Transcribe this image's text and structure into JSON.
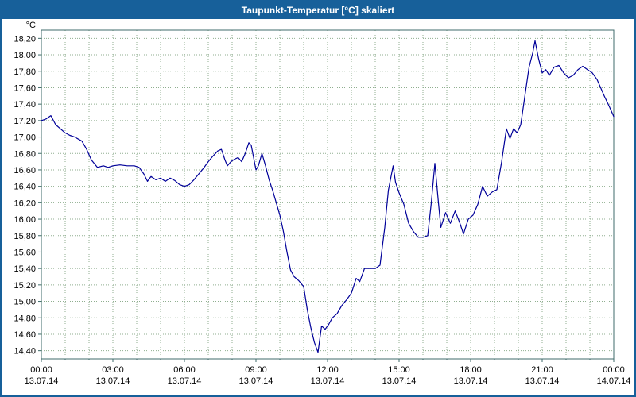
{
  "title": "Taupunkt-Temperatur [°C] skaliert",
  "colors": {
    "titlebar_bg": "#17609A",
    "titlebar_text": "#FFFFFF",
    "border": "#17609A",
    "background": "#FFFFFF",
    "grid": "#8FAE8F",
    "plot_border": "#3F6B6B",
    "label_text": "#000000",
    "line": "#000099"
  },
  "chart_data": {
    "type": "line",
    "title": "Taupunkt-Temperatur [°C] skaliert",
    "y_unit": "°C",
    "ylabel": "",
    "xlabel": "",
    "grid": true,
    "legend_position": "none",
    "ylim": [
      14.3,
      18.3
    ],
    "ytick_start": 14.4,
    "ytick_step": 0.2,
    "ytick_end": 18.2,
    "y_decimal_separator": ",",
    "xlim": [
      0,
      24
    ],
    "x_minor_grid_hours": 1,
    "x_ticks": [
      {
        "hour": 0,
        "time": "00:00",
        "date": "13.07.14"
      },
      {
        "hour": 3,
        "time": "03:00",
        "date": "13.07.14"
      },
      {
        "hour": 6,
        "time": "06:00",
        "date": "13.07.14"
      },
      {
        "hour": 9,
        "time": "09:00",
        "date": "13.07.14"
      },
      {
        "hour": 12,
        "time": "12:00",
        "date": "13.07.14"
      },
      {
        "hour": 15,
        "time": "15:00",
        "date": "13.07.14"
      },
      {
        "hour": 18,
        "time": "18:00",
        "date": "13.07.14"
      },
      {
        "hour": 21,
        "time": "21:00",
        "date": "13.07.14"
      },
      {
        "hour": 24,
        "time": "00:00",
        "date": "14.07.14"
      }
    ],
    "series": [
      {
        "name": "taupunkt-temperatur",
        "color": "#000099",
        "points": [
          [
            0.0,
            17.2
          ],
          [
            0.2,
            17.22
          ],
          [
            0.4,
            17.26
          ],
          [
            0.6,
            17.15
          ],
          [
            0.8,
            17.1
          ],
          [
            1.0,
            17.05
          ],
          [
            1.2,
            17.02
          ],
          [
            1.4,
            17.0
          ],
          [
            1.7,
            16.95
          ],
          [
            1.9,
            16.85
          ],
          [
            2.1,
            16.72
          ],
          [
            2.35,
            16.63
          ],
          [
            2.6,
            16.65
          ],
          [
            2.8,
            16.63
          ],
          [
            3.0,
            16.65
          ],
          [
            3.3,
            16.66
          ],
          [
            3.6,
            16.65
          ],
          [
            3.9,
            16.65
          ],
          [
            4.1,
            16.63
          ],
          [
            4.3,
            16.55
          ],
          [
            4.45,
            16.46
          ],
          [
            4.6,
            16.52
          ],
          [
            4.8,
            16.48
          ],
          [
            5.0,
            16.5
          ],
          [
            5.2,
            16.46
          ],
          [
            5.4,
            16.5
          ],
          [
            5.6,
            16.47
          ],
          [
            5.8,
            16.42
          ],
          [
            6.0,
            16.4
          ],
          [
            6.2,
            16.42
          ],
          [
            6.4,
            16.48
          ],
          [
            6.6,
            16.55
          ],
          [
            6.8,
            16.62
          ],
          [
            7.0,
            16.7
          ],
          [
            7.2,
            16.77
          ],
          [
            7.4,
            16.83
          ],
          [
            7.55,
            16.85
          ],
          [
            7.7,
            16.72
          ],
          [
            7.8,
            16.65
          ],
          [
            7.95,
            16.7
          ],
          [
            8.1,
            16.73
          ],
          [
            8.25,
            16.75
          ],
          [
            8.4,
            16.7
          ],
          [
            8.55,
            16.8
          ],
          [
            8.7,
            16.93
          ],
          [
            8.8,
            16.9
          ],
          [
            9.0,
            16.6
          ],
          [
            9.1,
            16.65
          ],
          [
            9.25,
            16.8
          ],
          [
            9.4,
            16.65
          ],
          [
            9.55,
            16.48
          ],
          [
            9.7,
            16.35
          ],
          [
            9.85,
            16.2
          ],
          [
            10.0,
            16.05
          ],
          [
            10.15,
            15.85
          ],
          [
            10.3,
            15.6
          ],
          [
            10.45,
            15.38
          ],
          [
            10.6,
            15.3
          ],
          [
            10.8,
            15.25
          ],
          [
            11.0,
            15.18
          ],
          [
            11.15,
            14.9
          ],
          [
            11.3,
            14.68
          ],
          [
            11.45,
            14.5
          ],
          [
            11.6,
            14.38
          ],
          [
            11.75,
            14.7
          ],
          [
            11.9,
            14.66
          ],
          [
            12.05,
            14.72
          ],
          [
            12.2,
            14.8
          ],
          [
            12.4,
            14.85
          ],
          [
            12.6,
            14.95
          ],
          [
            12.8,
            15.02
          ],
          [
            13.0,
            15.1
          ],
          [
            13.2,
            15.28
          ],
          [
            13.35,
            15.24
          ],
          [
            13.55,
            15.4
          ],
          [
            13.8,
            15.4
          ],
          [
            14.0,
            15.4
          ],
          [
            14.2,
            15.44
          ],
          [
            14.4,
            15.9
          ],
          [
            14.55,
            16.35
          ],
          [
            14.65,
            16.5
          ],
          [
            14.75,
            16.65
          ],
          [
            14.85,
            16.45
          ],
          [
            15.0,
            16.32
          ],
          [
            15.2,
            16.18
          ],
          [
            15.4,
            15.95
          ],
          [
            15.6,
            15.85
          ],
          [
            15.8,
            15.78
          ],
          [
            16.0,
            15.78
          ],
          [
            16.2,
            15.8
          ],
          [
            16.35,
            16.2
          ],
          [
            16.5,
            16.68
          ],
          [
            16.65,
            16.2
          ],
          [
            16.75,
            15.9
          ],
          [
            16.95,
            16.08
          ],
          [
            17.15,
            15.95
          ],
          [
            17.35,
            16.1
          ],
          [
            17.55,
            15.95
          ],
          [
            17.7,
            15.82
          ],
          [
            17.9,
            16.0
          ],
          [
            18.1,
            16.05
          ],
          [
            18.3,
            16.18
          ],
          [
            18.5,
            16.4
          ],
          [
            18.7,
            16.28
          ],
          [
            18.9,
            16.33
          ],
          [
            19.1,
            16.36
          ],
          [
            19.3,
            16.7
          ],
          [
            19.5,
            17.1
          ],
          [
            19.65,
            16.98
          ],
          [
            19.8,
            17.1
          ],
          [
            19.95,
            17.05
          ],
          [
            20.1,
            17.15
          ],
          [
            20.3,
            17.55
          ],
          [
            20.45,
            17.85
          ],
          [
            20.6,
            18.02
          ],
          [
            20.7,
            18.17
          ],
          [
            20.85,
            17.95
          ],
          [
            21.0,
            17.78
          ],
          [
            21.15,
            17.82
          ],
          [
            21.3,
            17.75
          ],
          [
            21.5,
            17.85
          ],
          [
            21.7,
            17.87
          ],
          [
            21.9,
            17.78
          ],
          [
            22.1,
            17.72
          ],
          [
            22.3,
            17.75
          ],
          [
            22.5,
            17.82
          ],
          [
            22.7,
            17.86
          ],
          [
            22.9,
            17.82
          ],
          [
            23.1,
            17.78
          ],
          [
            23.3,
            17.7
          ],
          [
            23.45,
            17.6
          ],
          [
            23.6,
            17.5
          ],
          [
            23.8,
            17.38
          ],
          [
            24.0,
            17.25
          ]
        ]
      }
    ]
  }
}
